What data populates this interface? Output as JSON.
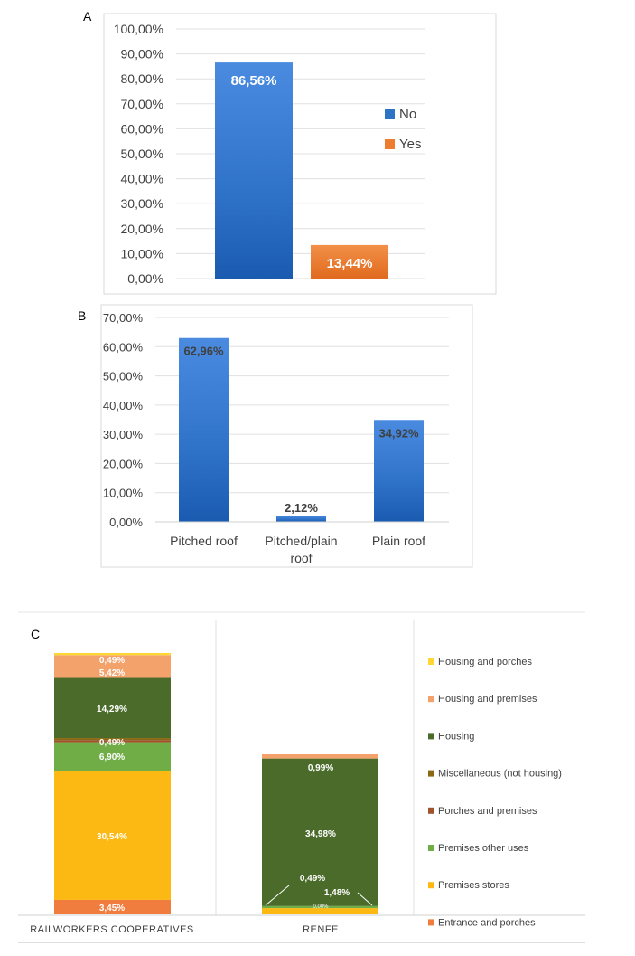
{
  "chart_data": [
    {
      "panel": "A",
      "type": "bar",
      "categories": [
        "No",
        "Yes"
      ],
      "values": [
        86.56,
        13.44
      ],
      "data_labels": [
        "86,56%",
        "13,44%"
      ],
      "colors": [
        "#2e74c6",
        "#ed7d31"
      ],
      "ylim": [
        0,
        100
      ],
      "yticks": [
        "0,00%",
        "10,00%",
        "20,00%",
        "30,00%",
        "40,00%",
        "50,00%",
        "60,00%",
        "70,00%",
        "80,00%",
        "90,00%",
        "100,00%"
      ],
      "legend": [
        {
          "label": "No",
          "color": "#2e74c6"
        },
        {
          "label": "Yes",
          "color": "#ed7d31"
        }
      ],
      "legend_position": "right",
      "grid": true
    },
    {
      "panel": "B",
      "type": "bar",
      "categories": [
        "Pitched roof",
        "Pitched/plain roof",
        "Plain roof"
      ],
      "category_lines": [
        [
          "Pitched roof"
        ],
        [
          "Pitched/plain",
          "roof"
        ],
        [
          "Plain roof"
        ]
      ],
      "values": [
        62.96,
        2.12,
        34.92
      ],
      "data_labels": [
        "62,96%",
        "2,12%",
        "34,92%"
      ],
      "colors": [
        "#2e74c6",
        "#2e74c6",
        "#2e74c6"
      ],
      "ylim": [
        0,
        70
      ],
      "yticks": [
        "0,00%",
        "10,00%",
        "20,00%",
        "30,00%",
        "40,00%",
        "50,00%",
        "60,00%",
        "70,00%"
      ],
      "grid": true
    },
    {
      "panel": "C",
      "type": "bar",
      "stacked": true,
      "categories": [
        "RAILWORKERS COOPERATIVES",
        "RENFE"
      ],
      "ylim": [
        0,
        100
      ],
      "series": [
        {
          "name": "Entrance and porches",
          "color": "#f07c3e",
          "values": [
            3.45,
            0
          ],
          "labels": [
            "3,45%",
            ""
          ]
        },
        {
          "name": "Premises stores",
          "color": "#fdb913",
          "values": [
            30.54,
            1.48
          ],
          "labels": [
            "30,54%",
            "1,48%"
          ]
        },
        {
          "name": "Premises other uses",
          "color": "#70ad47",
          "values": [
            6.9,
            0.49
          ],
          "labels": [
            "6,90%",
            "0,49%"
          ]
        },
        {
          "name": "Porches and premises",
          "color": "#a0522d",
          "values": [
            0.49,
            0
          ],
          "labels": [
            "0,49%",
            "0,00%"
          ]
        },
        {
          "name": "Miscellaneous (not housing)",
          "color": "#8b6914",
          "values": [
            0.49,
            0
          ],
          "labels": [
            "",
            ""
          ]
        },
        {
          "name": "Housing",
          "color": "#4a6b2a",
          "values": [
            14.29,
            34.98
          ],
          "labels": [
            "14,29%",
            "34,98%"
          ]
        },
        {
          "name": "Housing and premises",
          "color": "#f4a26c",
          "values": [
            5.42,
            0.99
          ],
          "labels": [
            "5,42%",
            "0,99%"
          ]
        },
        {
          "name": "Housing and porches",
          "color": "#ffd633",
          "values": [
            0.49,
            0
          ],
          "labels": [
            "0,49%",
            ""
          ]
        }
      ],
      "legend": [
        "Housing and porches",
        "Housing and premises",
        "Housing",
        "Miscellaneous (not housing)",
        "Porches and premises",
        "Premises other uses",
        "Premises stores",
        "Entrance and porches"
      ],
      "legend_position": "right"
    }
  ]
}
